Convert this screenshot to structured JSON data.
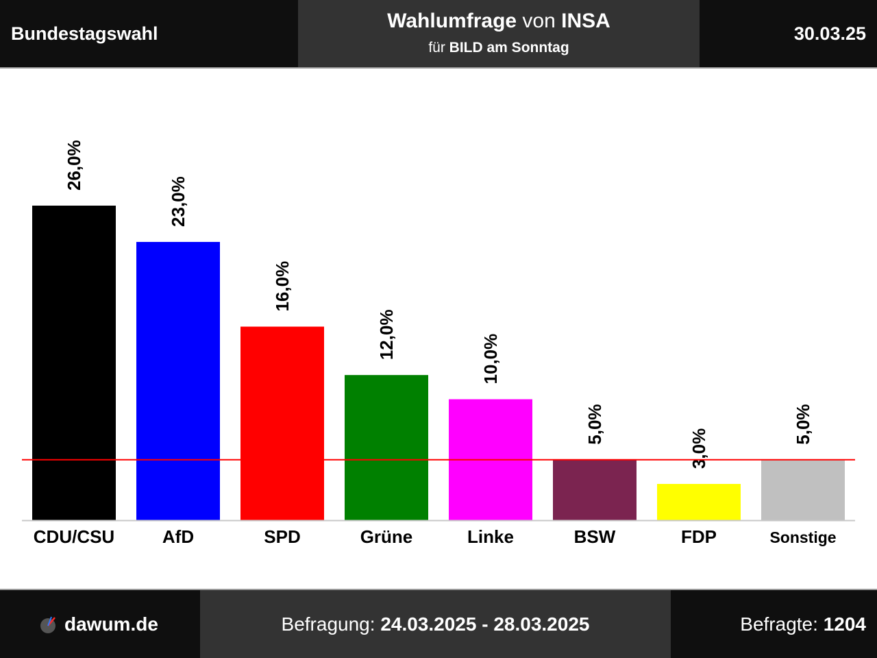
{
  "header": {
    "left_title": "Bundestagswahl",
    "center_prefix": "Wahlumfrage",
    "center_von": "von",
    "institute": "INSA",
    "sub_prefix": "für",
    "client": "BILD am Sonntag",
    "date": "30.03.25"
  },
  "footer": {
    "logo_text": "dawum.de",
    "logo_icon": "dawum-logo-icon",
    "survey_label": "Befragung:",
    "survey_period": "24.03.2025 - 28.03.2025",
    "respondents_label": "Befragte:",
    "respondents": "1204"
  },
  "chart_data": {
    "type": "bar",
    "categories": [
      "CDU/CSU",
      "AfD",
      "SPD",
      "Grüne",
      "Linke",
      "BSW",
      "FDP",
      "Sonstige"
    ],
    "values": [
      26.0,
      23.0,
      16.0,
      12.0,
      10.0,
      5.0,
      3.0,
      5.0
    ],
    "value_labels": [
      "26,0%",
      "23,0%",
      "16,0%",
      "12,0%",
      "10,0%",
      "5,0%",
      "3,0%",
      "5,0%"
    ],
    "colors": [
      "#000000",
      "#0000ff",
      "#ff0000",
      "#008000",
      "#ff00ff",
      "#7b2450",
      "#ffff00",
      "#c0c0c0"
    ],
    "threshold": 5.0,
    "threshold_color": "#ff0000",
    "ylim": [
      0,
      26.0
    ]
  }
}
